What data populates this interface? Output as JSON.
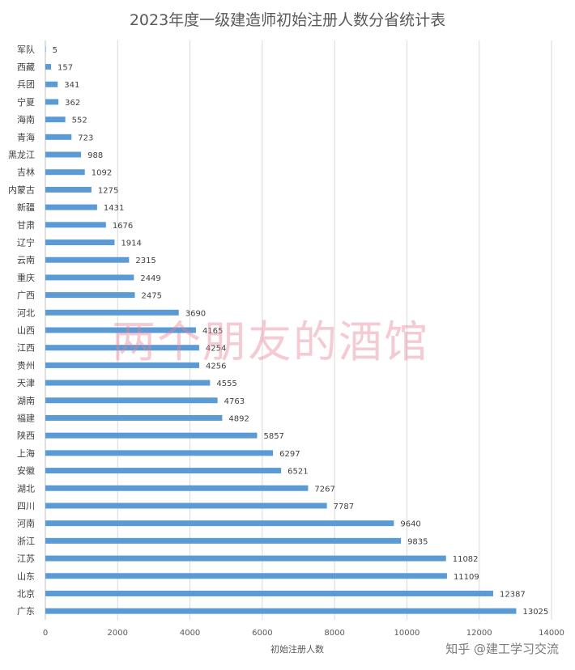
{
  "chart_data": {
    "type": "bar",
    "orientation": "horizontal",
    "title": "2023年度一级建造师初始注册人数分省统计表",
    "xlabel": "初始注册人数",
    "ylabel": "",
    "xlim": [
      0,
      14000
    ],
    "xticks": [
      0,
      2000,
      4000,
      6000,
      8000,
      10000,
      12000,
      14000
    ],
    "grid": "vertical",
    "legend": "none",
    "bar_color": "#5b9bd5",
    "categories": [
      "军队",
      "西藏",
      "兵团",
      "宁夏",
      "海南",
      "青海",
      "黑龙江",
      "吉林",
      "内蒙古",
      "新疆",
      "甘肃",
      "辽宁",
      "云南",
      "重庆",
      "广西",
      "河北",
      "山西",
      "江西",
      "贵州",
      "天津",
      "湖南",
      "福建",
      "陕西",
      "上海",
      "安徽",
      "湖北",
      "四川",
      "河南",
      "浙江",
      "江苏",
      "山东",
      "北京",
      "广东"
    ],
    "values": [
      5,
      157,
      341,
      362,
      552,
      723,
      988,
      1092,
      1275,
      1431,
      1676,
      1914,
      2315,
      2449,
      2475,
      3690,
      4165,
      4254,
      4256,
      4555,
      4763,
      4892,
      5857,
      6297,
      6521,
      7267,
      7787,
      9640,
      9835,
      11082,
      11109,
      12387,
      13025
    ]
  },
  "watermark": "两个朋友的酒馆",
  "source_credit": "知乎 @建工学习交流"
}
